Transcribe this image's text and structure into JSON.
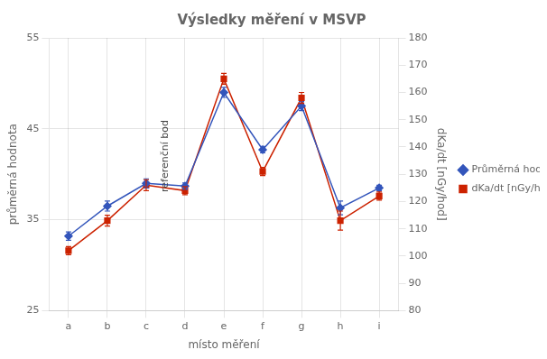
{
  "chart_data": {
    "type": "line",
    "title": "Výsledky měření v MSVP",
    "xlabel": "místo měření",
    "ylabel": "průměrná hodnota",
    "y2label": "dKa/dt [nGy/hod]",
    "categories": [
      "a",
      "b",
      "c",
      "d",
      "e",
      "f",
      "g",
      "h",
      "i"
    ],
    "series": [
      {
        "name": "Průměrná hodnota",
        "color": "#3355BB",
        "marker": "diamond",
        "values": [
          33.2,
          36.5,
          39.0,
          38.7,
          49.0,
          42.7,
          47.5,
          36.3,
          38.5
        ],
        "errors": [
          0.45,
          0.55,
          0.5,
          0.35,
          0.55,
          0.35,
          0.5,
          0.75,
          0.3
        ]
      },
      {
        "name": "dKa/dt [nGy/hod]",
        "color": "#CC2200",
        "marker": "square",
        "axis": "y2",
        "values": [
          102,
          113,
          126,
          124,
          165,
          131,
          158,
          113,
          122
        ],
        "errors": [
          1.5,
          2.0,
          2.0,
          1.5,
          2.0,
          1.5,
          2.0,
          3.5,
          1.5
        ]
      }
    ],
    "ylim": [
      25,
      55
    ],
    "yticks": [
      25,
      35,
      45,
      55
    ],
    "y2lim": [
      80,
      180
    ],
    "y2ticks": [
      80,
      90,
      100,
      110,
      120,
      130,
      140,
      150,
      160,
      170,
      180
    ],
    "grid": true,
    "legend": "right",
    "annotations": [
      {
        "text": "referenční bod",
        "x": 2.5,
        "y": 42.0
      }
    ]
  }
}
